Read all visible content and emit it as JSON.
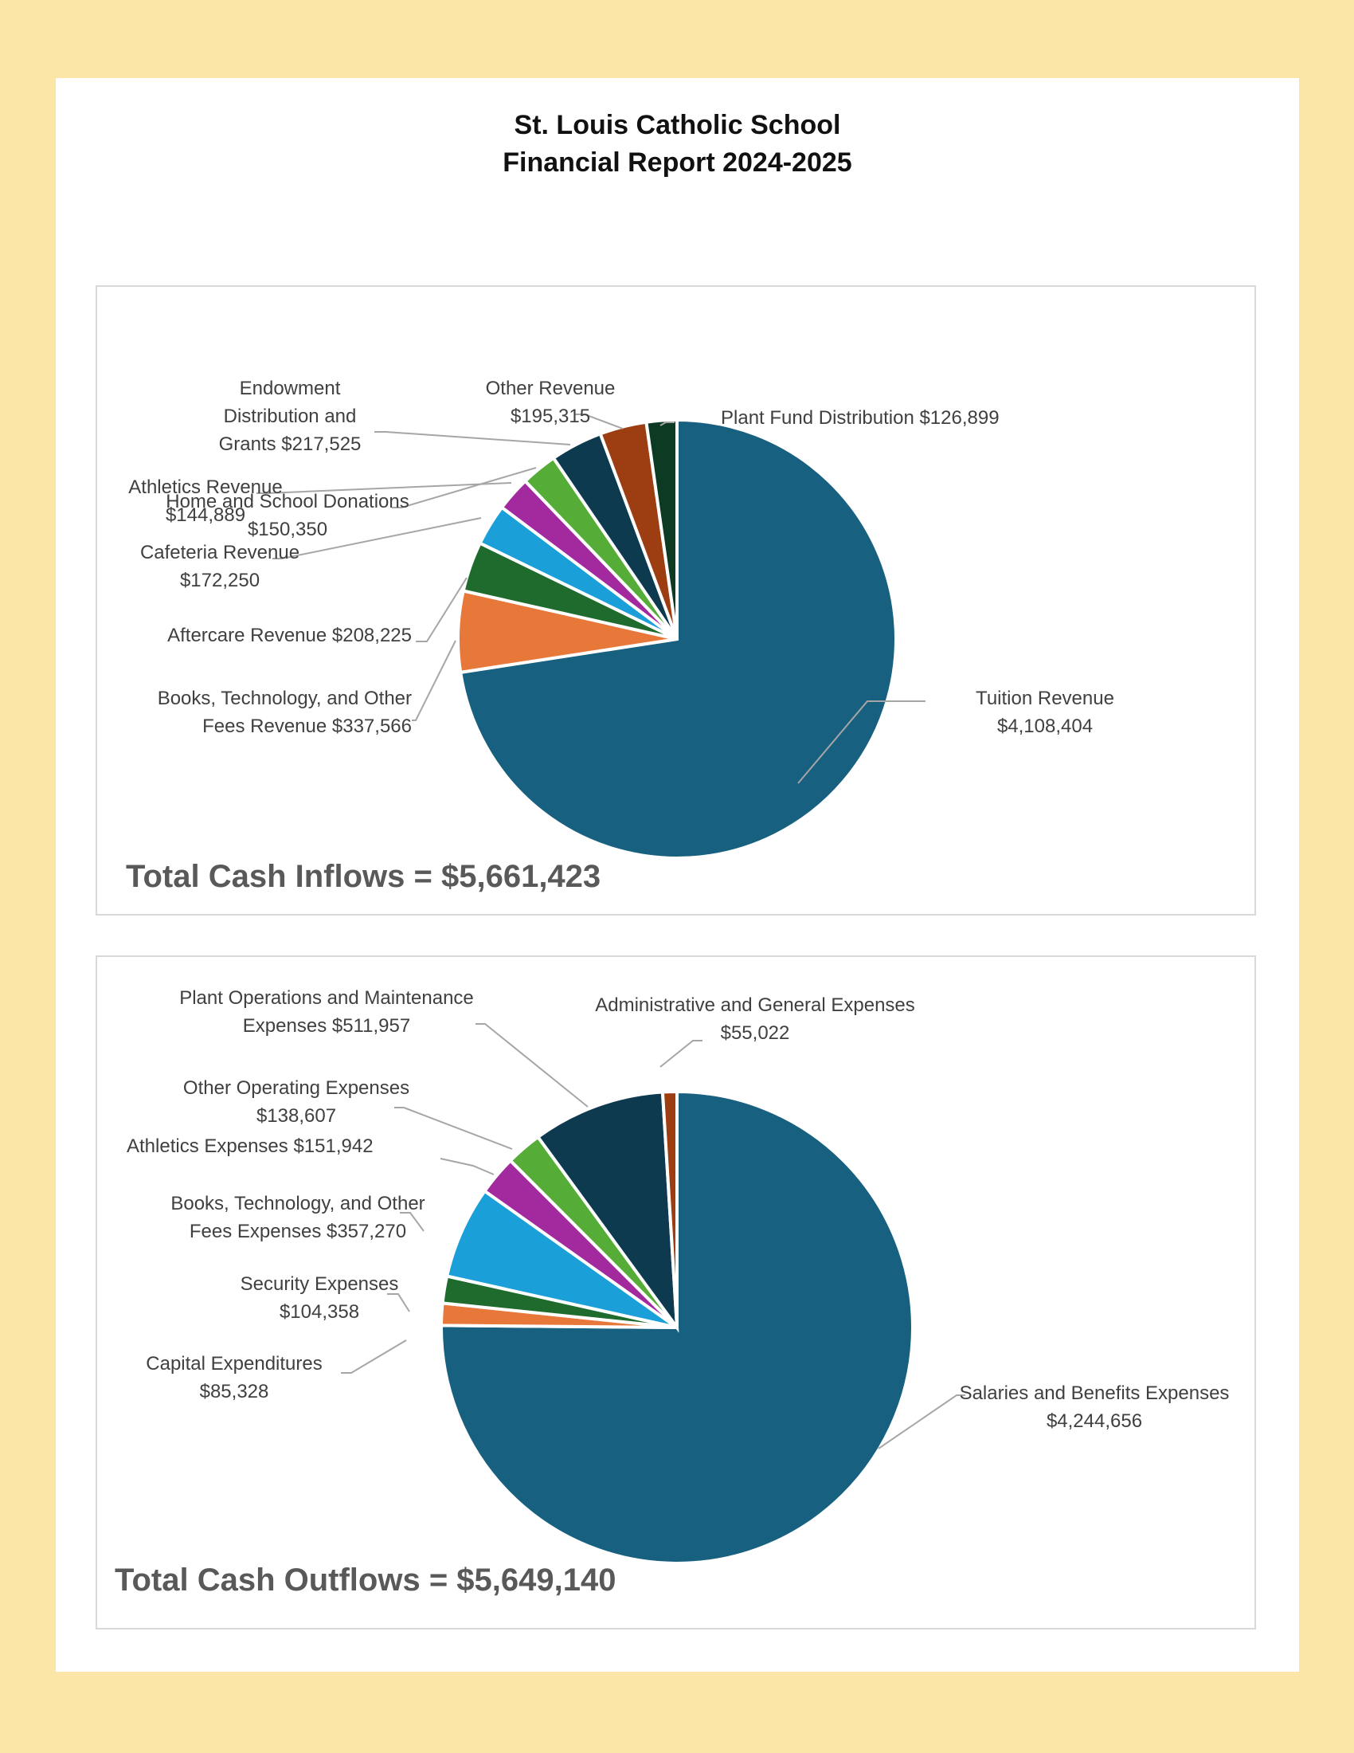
{
  "report": {
    "title_line1": "St. Louis Catholic School",
    "title_line2": "Financial Report 2024-2025"
  },
  "chart_data": [
    {
      "type": "pie",
      "name": "Cash Inflows",
      "total_label": "Total Cash Inflows = $5,661,423",
      "slices": [
        {
          "name": "Tuition Revenue",
          "value": 4108404,
          "value_label": "$4,108,404",
          "label_lines": [
            "Tuition Revenue",
            "$4,108,404"
          ],
          "color": "#17607f"
        },
        {
          "name": "Books, Technology, and Other Fees Revenue",
          "value": 337566,
          "value_label": "$337,566",
          "label_lines": [
            "Books, Technology, and Other",
            "Fees Revenue  $337,566"
          ],
          "color": "#e8773a"
        },
        {
          "name": "Aftercare Revenue",
          "value": 208225,
          "value_label": "$208,225",
          "label_lines": [
            "Aftercare Revenue  $208,225"
          ],
          "color": "#1f6b2e"
        },
        {
          "name": "Cafeteria Revenue",
          "value": 172250,
          "value_label": "$172,250",
          "label_lines": [
            "Cafeteria Revenue",
            "$172,250"
          ],
          "color": "#1a9fd8"
        },
        {
          "name": "Athletics Revenue",
          "value": 144889,
          "value_label": "$144,889",
          "label_lines": [
            "Athletics Revenue",
            "$144,889"
          ],
          "color": "#a3299e"
        },
        {
          "name": "Home and School Donations",
          "value": 150350,
          "value_label": "$150,350",
          "label_lines": [
            "Home and School Donations",
            "$150,350"
          ],
          "color": "#55ac36"
        },
        {
          "name": "Endowment Distribution and Grants",
          "value": 217525,
          "value_label": "$217,525",
          "label_lines": [
            "Endowment",
            "Distribution and",
            "Grants  $217,525"
          ],
          "color": "#0e3a50"
        },
        {
          "name": "Other Revenue",
          "value": 195315,
          "value_label": "$195,315",
          "label_lines": [
            "Other Revenue",
            "$195,315"
          ],
          "color": "#9c3d12"
        },
        {
          "name": "Plant Fund Distribution",
          "value": 126899,
          "value_label": "$126,899",
          "label_lines": [
            "Plant Fund Distribution  $126,899"
          ],
          "color": "#0d3a22"
        }
      ]
    },
    {
      "type": "pie",
      "name": "Cash Outflows",
      "total_label": "Total Cash Outflows = $5,649,140",
      "slices": [
        {
          "name": "Salaries and Benefits Expenses",
          "value": 4244656,
          "value_label": "$4,244,656",
          "label_lines": [
            "Salaries and Benefits Expenses",
            "$4,244,656"
          ],
          "color": "#17607f"
        },
        {
          "name": "Capital Expenditures",
          "value": 85328,
          "value_label": "$85,328",
          "label_lines": [
            "Capital Expenditures",
            "$85,328"
          ],
          "color": "#e8773a"
        },
        {
          "name": "Security Expenses",
          "value": 104358,
          "value_label": "$104,358",
          "label_lines": [
            "Security Expenses",
            "$104,358"
          ],
          "color": "#1f6b2e"
        },
        {
          "name": "Books, Technology, and Other Fees Expenses",
          "value": 357270,
          "value_label": "$357,270",
          "label_lines": [
            "Books, Technology, and Other",
            "Fees Expenses  $357,270"
          ],
          "color": "#1a9fd8"
        },
        {
          "name": "Athletics Expenses",
          "value": 151942,
          "value_label": "$151,942",
          "label_lines": [
            "Athletics Expenses  $151,942"
          ],
          "color": "#a3299e"
        },
        {
          "name": "Other Operating Expenses",
          "value": 138607,
          "value_label": "$138,607",
          "label_lines": [
            "Other Operating Expenses",
            "$138,607"
          ],
          "color": "#55ac36"
        },
        {
          "name": "Plant Operations and Maintenance Expenses",
          "value": 511957,
          "value_label": "$511,957",
          "label_lines": [
            "Plant Operations and Maintenance",
            "Expenses  $511,957"
          ],
          "color": "#0e3a50"
        },
        {
          "name": "Administrative and General Expenses",
          "value": 55022,
          "value_label": "$55,022",
          "label_lines": [
            "Administrative and General Expenses",
            "$55,022"
          ],
          "color": "#9c3d12"
        }
      ]
    }
  ]
}
